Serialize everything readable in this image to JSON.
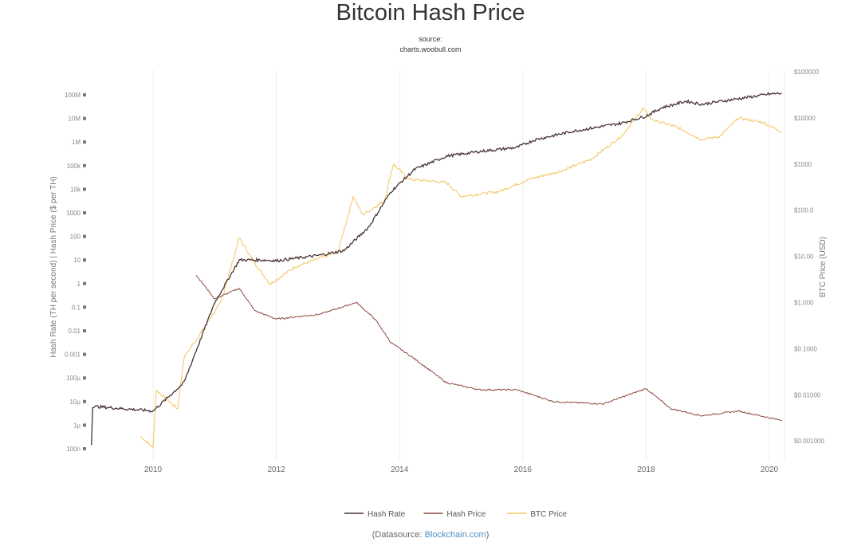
{
  "chart_data": {
    "type": "line",
    "title": "Bitcoin Hash Price",
    "subtitle": [
      "source:",
      "charts.woobull.com"
    ],
    "xlabel": "",
    "ylabel_left": "Hash Rate (TH per second) | Hash Price ($ per TH)",
    "ylabel_right": "BTC Price (USD)",
    "x_ticks": [
      "2010",
      "2012",
      "2014",
      "2016",
      "2018",
      "2020"
    ],
    "x_range": [
      2009.0,
      2020.25
    ],
    "left_ticks": [
      "100M",
      "10M",
      "1M",
      "100k",
      "10k",
      "1000",
      "100",
      "10",
      "1",
      "0.1",
      "0.01",
      "0.001",
      "100µ",
      "10µ",
      "1µ",
      "100n"
    ],
    "left_log_range": [
      -7,
      8
    ],
    "right_ticks": [
      "$100000",
      "$10000",
      "$1000",
      "$100.0",
      "$10.00",
      "$1.000",
      "$0.1000",
      "$0.01000",
      "$0.001000"
    ],
    "right_log_range": [
      -3,
      5
    ],
    "grid": "vertical",
    "legend_position": "bottom",
    "series": [
      {
        "name": "Hash Rate",
        "axis": "left",
        "color": "#4a3434",
        "scale": "log10",
        "x": [
          2009.0,
          2009.02,
          2010.0,
          2010.5,
          2010.75,
          2011.0,
          2011.4,
          2011.8,
          2012.0,
          2012.7,
          2013.1,
          2013.5,
          2013.86,
          2014.25,
          2014.76,
          2015.3,
          2015.9,
          2016.2,
          2016.8,
          2017.6,
          2018.0,
          2018.26,
          2018.65,
          2018.9,
          2019.4,
          2020.0,
          2020.2
        ],
        "log_values": [
          -6.8,
          -5.2,
          -5.4,
          -4.2,
          -2.5,
          -0.8,
          1.0,
          1.0,
          0.97,
          1.2,
          1.4,
          2.4,
          3.9,
          4.85,
          5.4,
          5.6,
          5.77,
          6.1,
          6.45,
          6.8,
          7.1,
          7.46,
          7.73,
          7.6,
          7.8,
          8.03,
          8.07
        ]
      },
      {
        "name": "Hash Price",
        "axis": "left",
        "color": "#8c4b40",
        "scale": "log10",
        "x": [
          2010.7,
          2011.0,
          2011.4,
          2011.65,
          2012.0,
          2012.7,
          2013.3,
          2013.6,
          2013.86,
          2014.25,
          2014.76,
          2015.3,
          2015.9,
          2016.5,
          2017.3,
          2018.0,
          2018.4,
          2018.9,
          2019.5,
          2020.2
        ],
        "log_values": [
          0.36,
          -0.65,
          -0.2,
          -1.15,
          -1.5,
          -1.3,
          -0.8,
          -1.5,
          -2.5,
          -3.2,
          -4.2,
          -4.5,
          -4.5,
          -5.0,
          -5.1,
          -4.45,
          -5.3,
          -5.6,
          -5.4,
          -5.8
        ]
      },
      {
        "name": "BTC Price",
        "axis": "right",
        "color": "#f3c560",
        "scale": "log10",
        "x": [
          2009.8,
          2010.0,
          2010.05,
          2010.4,
          2010.5,
          2010.85,
          2011.1,
          2011.4,
          2011.65,
          2011.9,
          2012.3,
          2013.0,
          2013.25,
          2013.4,
          2013.75,
          2013.9,
          2014.15,
          2014.76,
          2015.0,
          2015.6,
          2016.1,
          2016.6,
          2017.1,
          2017.6,
          2017.95,
          2018.1,
          2018.5,
          2018.9,
          2019.2,
          2019.5,
          2019.9,
          2020.2
        ],
        "log_values": [
          -2.9,
          -3.15,
          -1.9,
          -2.3,
          -1.2,
          -0.5,
          0.0,
          1.4,
          0.85,
          0.4,
          0.77,
          1.1,
          2.3,
          1.9,
          2.2,
          3.0,
          2.67,
          2.6,
          2.3,
          2.4,
          2.67,
          2.84,
          3.1,
          3.6,
          4.2,
          3.96,
          3.8,
          3.53,
          3.6,
          4.0,
          3.9,
          3.7
        ]
      }
    ]
  },
  "footer": {
    "prefix": "(Datasource: ",
    "link": "Blockchain.com",
    "suffix": ")"
  }
}
